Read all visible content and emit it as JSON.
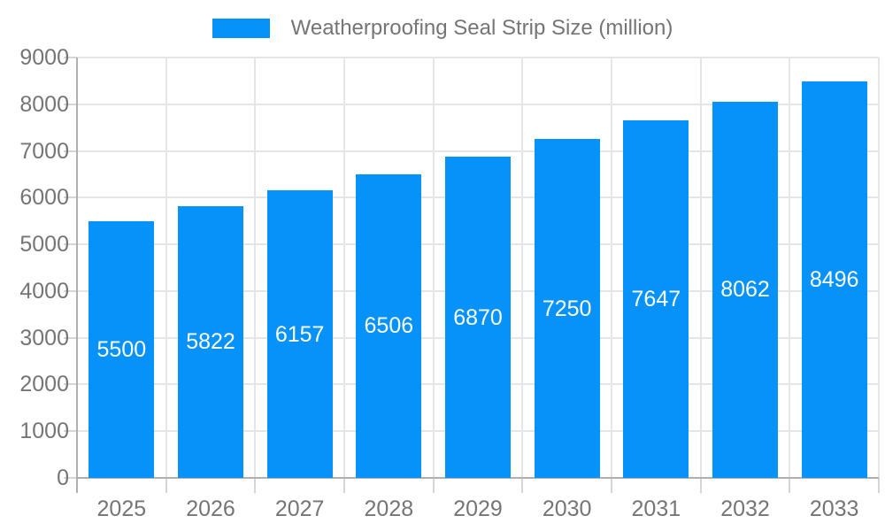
{
  "chart_data": {
    "type": "bar",
    "title": "Weatherproofing Seal Strip Size (million)",
    "categories": [
      "2025",
      "2026",
      "2027",
      "2028",
      "2029",
      "2030",
      "2031",
      "2032",
      "2033"
    ],
    "values": [
      5500,
      5822,
      6157,
      6506,
      6870,
      7250,
      7647,
      8062,
      8496
    ],
    "xlabel": "",
    "ylabel": "",
    "ylim": [
      0,
      9000
    ],
    "ytick_step": 1000,
    "ytick_labels": [
      "0",
      "1000",
      "2000",
      "3000",
      "4000",
      "5000",
      "6000",
      "7000",
      "8000",
      "9000"
    ],
    "grid": true,
    "legend_position": "top",
    "value_labels": "inside-center",
    "colors": {
      "bar": "#0692f8",
      "value_label": "#ffffff",
      "tick_text": "#757575",
      "legend_text": "#757575",
      "gridline": "#e5e5e5",
      "axis_line": "#b0b0b0",
      "tick_mark": "#d5d5d5",
      "background": "#ffffff"
    }
  },
  "legend": {
    "label": "Weatherproofing Seal Strip Size (million)"
  }
}
